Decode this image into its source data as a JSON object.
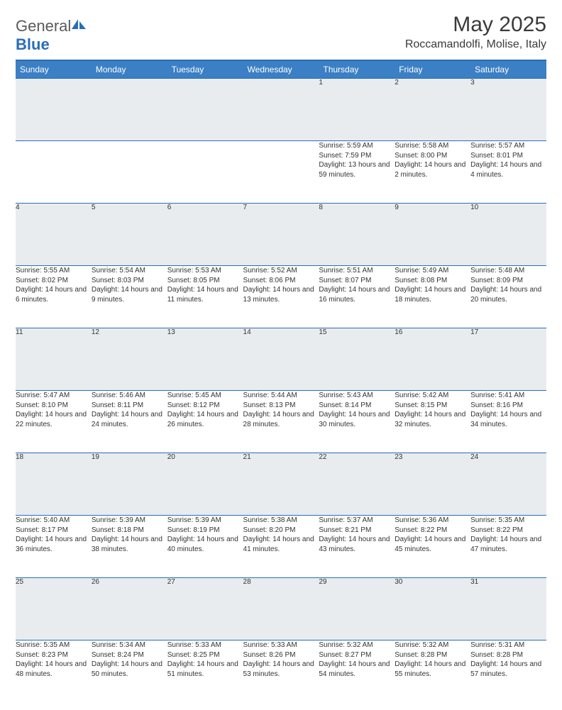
{
  "logo": {
    "word1": "General",
    "word2": "Blue"
  },
  "title": "May 2025",
  "location": "Roccamandolfi, Molise, Italy",
  "day_headers": [
    "Sunday",
    "Monday",
    "Tuesday",
    "Wednesday",
    "Thursday",
    "Friday",
    "Saturday"
  ],
  "colors": {
    "header_bg": "#3b7fc4",
    "border": "#2a6db8",
    "daynum_bg": "#e8ecef"
  },
  "weeks": [
    [
      null,
      null,
      null,
      null,
      {
        "n": "1",
        "sr": "5:59 AM",
        "ss": "7:59 PM",
        "dl": "13 hours and 59 minutes."
      },
      {
        "n": "2",
        "sr": "5:58 AM",
        "ss": "8:00 PM",
        "dl": "14 hours and 2 minutes."
      },
      {
        "n": "3",
        "sr": "5:57 AM",
        "ss": "8:01 PM",
        "dl": "14 hours and 4 minutes."
      }
    ],
    [
      {
        "n": "4",
        "sr": "5:55 AM",
        "ss": "8:02 PM",
        "dl": "14 hours and 6 minutes."
      },
      {
        "n": "5",
        "sr": "5:54 AM",
        "ss": "8:03 PM",
        "dl": "14 hours and 9 minutes."
      },
      {
        "n": "6",
        "sr": "5:53 AM",
        "ss": "8:05 PM",
        "dl": "14 hours and 11 minutes."
      },
      {
        "n": "7",
        "sr": "5:52 AM",
        "ss": "8:06 PM",
        "dl": "14 hours and 13 minutes."
      },
      {
        "n": "8",
        "sr": "5:51 AM",
        "ss": "8:07 PM",
        "dl": "14 hours and 16 minutes."
      },
      {
        "n": "9",
        "sr": "5:49 AM",
        "ss": "8:08 PM",
        "dl": "14 hours and 18 minutes."
      },
      {
        "n": "10",
        "sr": "5:48 AM",
        "ss": "8:09 PM",
        "dl": "14 hours and 20 minutes."
      }
    ],
    [
      {
        "n": "11",
        "sr": "5:47 AM",
        "ss": "8:10 PM",
        "dl": "14 hours and 22 minutes."
      },
      {
        "n": "12",
        "sr": "5:46 AM",
        "ss": "8:11 PM",
        "dl": "14 hours and 24 minutes."
      },
      {
        "n": "13",
        "sr": "5:45 AM",
        "ss": "8:12 PM",
        "dl": "14 hours and 26 minutes."
      },
      {
        "n": "14",
        "sr": "5:44 AM",
        "ss": "8:13 PM",
        "dl": "14 hours and 28 minutes."
      },
      {
        "n": "15",
        "sr": "5:43 AM",
        "ss": "8:14 PM",
        "dl": "14 hours and 30 minutes."
      },
      {
        "n": "16",
        "sr": "5:42 AM",
        "ss": "8:15 PM",
        "dl": "14 hours and 32 minutes."
      },
      {
        "n": "17",
        "sr": "5:41 AM",
        "ss": "8:16 PM",
        "dl": "14 hours and 34 minutes."
      }
    ],
    [
      {
        "n": "18",
        "sr": "5:40 AM",
        "ss": "8:17 PM",
        "dl": "14 hours and 36 minutes."
      },
      {
        "n": "19",
        "sr": "5:39 AM",
        "ss": "8:18 PM",
        "dl": "14 hours and 38 minutes."
      },
      {
        "n": "20",
        "sr": "5:39 AM",
        "ss": "8:19 PM",
        "dl": "14 hours and 40 minutes."
      },
      {
        "n": "21",
        "sr": "5:38 AM",
        "ss": "8:20 PM",
        "dl": "14 hours and 41 minutes."
      },
      {
        "n": "22",
        "sr": "5:37 AM",
        "ss": "8:21 PM",
        "dl": "14 hours and 43 minutes."
      },
      {
        "n": "23",
        "sr": "5:36 AM",
        "ss": "8:22 PM",
        "dl": "14 hours and 45 minutes."
      },
      {
        "n": "24",
        "sr": "5:35 AM",
        "ss": "8:22 PM",
        "dl": "14 hours and 47 minutes."
      }
    ],
    [
      {
        "n": "25",
        "sr": "5:35 AM",
        "ss": "8:23 PM",
        "dl": "14 hours and 48 minutes."
      },
      {
        "n": "26",
        "sr": "5:34 AM",
        "ss": "8:24 PM",
        "dl": "14 hours and 50 minutes."
      },
      {
        "n": "27",
        "sr": "5:33 AM",
        "ss": "8:25 PM",
        "dl": "14 hours and 51 minutes."
      },
      {
        "n": "28",
        "sr": "5:33 AM",
        "ss": "8:26 PM",
        "dl": "14 hours and 53 minutes."
      },
      {
        "n": "29",
        "sr": "5:32 AM",
        "ss": "8:27 PM",
        "dl": "14 hours and 54 minutes."
      },
      {
        "n": "30",
        "sr": "5:32 AM",
        "ss": "8:28 PM",
        "dl": "14 hours and 55 minutes."
      },
      {
        "n": "31",
        "sr": "5:31 AM",
        "ss": "8:28 PM",
        "dl": "14 hours and 57 minutes."
      }
    ]
  ],
  "labels": {
    "sunrise": "Sunrise: ",
    "sunset": "Sunset: ",
    "daylight": "Daylight: "
  }
}
